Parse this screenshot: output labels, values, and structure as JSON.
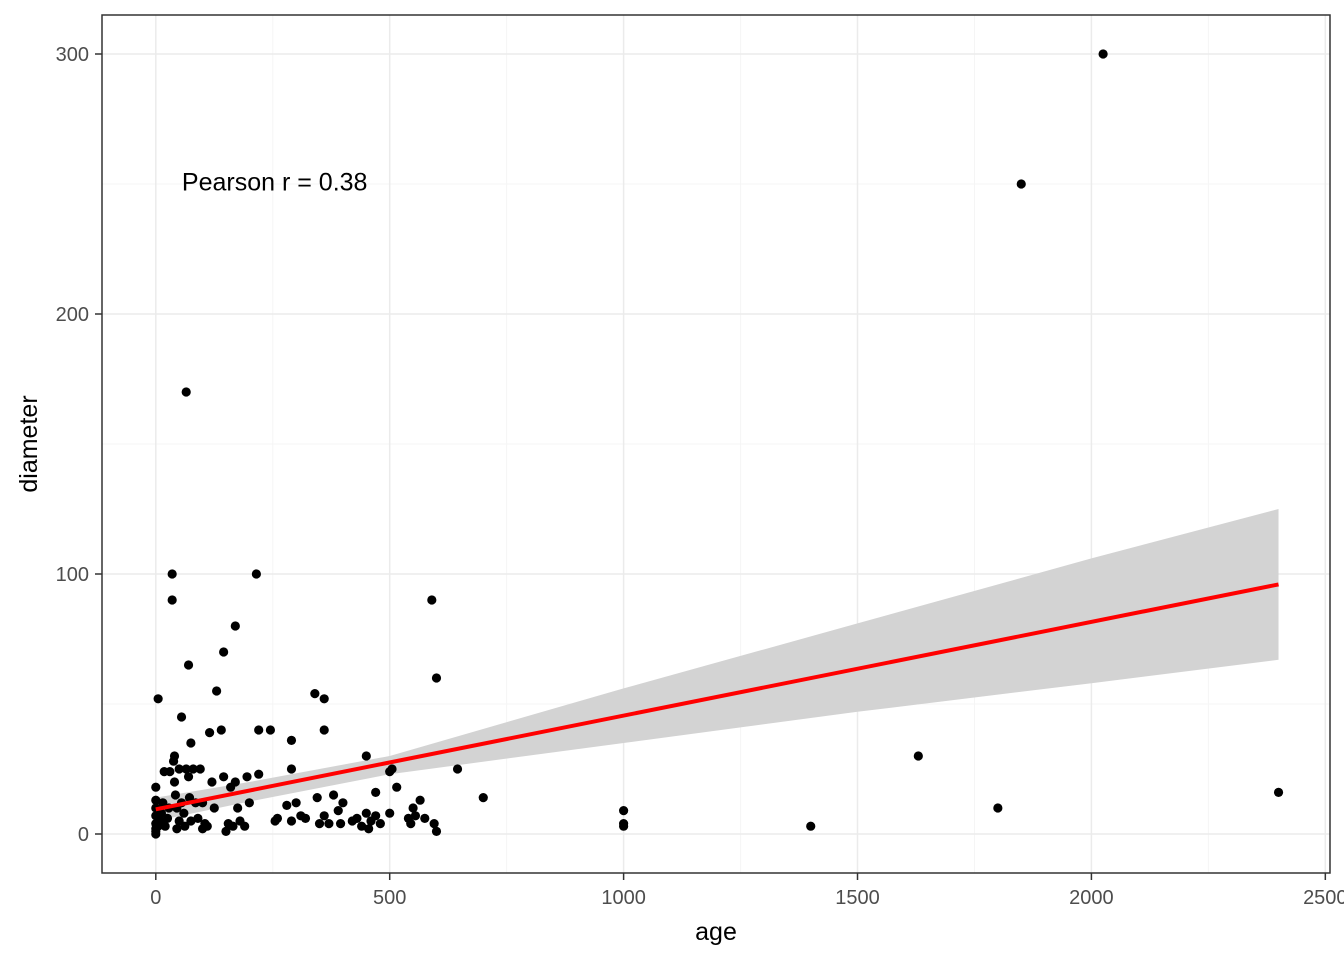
{
  "chart_data": {
    "type": "scatter",
    "xlabel": "age",
    "ylabel": "diameter",
    "xlim": [
      -115,
      2510
    ],
    "ylim": [
      -15,
      315
    ],
    "xticks": [
      0,
      500,
      1000,
      1500,
      2000,
      2500
    ],
    "yticks": [
      0,
      100,
      200,
      300
    ],
    "grid": true,
    "annotation": {
      "text": "Pearson r = 0.38",
      "x": 500,
      "y": 250
    },
    "points": [
      [
        0,
        0
      ],
      [
        0,
        1
      ],
      [
        0,
        2
      ],
      [
        0,
        4
      ],
      [
        0,
        7
      ],
      [
        0,
        10
      ],
      [
        0,
        13
      ],
      [
        0,
        18
      ],
      [
        5,
        52
      ],
      [
        5,
        3
      ],
      [
        10,
        5
      ],
      [
        12,
        8
      ],
      [
        15,
        12
      ],
      [
        18,
        24
      ],
      [
        20,
        3
      ],
      [
        25,
        6
      ],
      [
        28,
        10
      ],
      [
        30,
        24
      ],
      [
        35,
        100
      ],
      [
        35,
        90
      ],
      [
        38,
        28
      ],
      [
        40,
        30
      ],
      [
        40,
        20
      ],
      [
        42,
        15
      ],
      [
        45,
        10
      ],
      [
        45,
        2
      ],
      [
        50,
        5
      ],
      [
        50,
        25
      ],
      [
        55,
        45
      ],
      [
        55,
        12
      ],
      [
        60,
        8
      ],
      [
        62,
        3
      ],
      [
        65,
        170
      ],
      [
        65,
        25
      ],
      [
        70,
        65
      ],
      [
        70,
        22
      ],
      [
        72,
        14
      ],
      [
        75,
        35
      ],
      [
        75,
        5
      ],
      [
        80,
        25
      ],
      [
        85,
        12
      ],
      [
        90,
        6
      ],
      [
        95,
        25
      ],
      [
        100,
        12
      ],
      [
        100,
        2
      ],
      [
        105,
        4
      ],
      [
        110,
        3
      ],
      [
        115,
        39
      ],
      [
        120,
        20
      ],
      [
        125,
        10
      ],
      [
        130,
        55
      ],
      [
        140,
        40
      ],
      [
        145,
        70
      ],
      [
        145,
        22
      ],
      [
        150,
        1
      ],
      [
        155,
        4
      ],
      [
        160,
        18
      ],
      [
        165,
        3
      ],
      [
        170,
        80
      ],
      [
        170,
        20
      ],
      [
        175,
        10
      ],
      [
        180,
        5
      ],
      [
        190,
        3
      ],
      [
        195,
        22
      ],
      [
        200,
        12
      ],
      [
        215,
        100
      ],
      [
        220,
        40
      ],
      [
        220,
        23
      ],
      [
        245,
        40
      ],
      [
        255,
        5
      ],
      [
        260,
        6
      ],
      [
        280,
        11
      ],
      [
        290,
        25
      ],
      [
        290,
        36
      ],
      [
        290,
        5
      ],
      [
        300,
        12
      ],
      [
        310,
        7
      ],
      [
        320,
        6
      ],
      [
        340,
        54
      ],
      [
        345,
        14
      ],
      [
        350,
        4
      ],
      [
        360,
        52
      ],
      [
        360,
        40
      ],
      [
        360,
        7
      ],
      [
        370,
        4
      ],
      [
        380,
        15
      ],
      [
        390,
        9
      ],
      [
        395,
        4
      ],
      [
        400,
        12
      ],
      [
        420,
        5
      ],
      [
        430,
        6
      ],
      [
        440,
        3
      ],
      [
        450,
        8
      ],
      [
        450,
        30
      ],
      [
        455,
        2
      ],
      [
        460,
        5
      ],
      [
        470,
        16
      ],
      [
        470,
        7
      ],
      [
        480,
        4
      ],
      [
        500,
        24
      ],
      [
        500,
        8
      ],
      [
        505,
        25
      ],
      [
        515,
        18
      ],
      [
        540,
        6
      ],
      [
        545,
        4
      ],
      [
        550,
        10
      ],
      [
        555,
        7
      ],
      [
        565,
        13
      ],
      [
        575,
        6
      ],
      [
        590,
        90
      ],
      [
        595,
        4
      ],
      [
        600,
        60
      ],
      [
        600,
        1
      ],
      [
        645,
        25
      ],
      [
        700,
        14
      ],
      [
        1000,
        9
      ],
      [
        1000,
        3
      ],
      [
        1000,
        4
      ],
      [
        1400,
        3
      ],
      [
        1630,
        30
      ],
      [
        1800,
        10
      ],
      [
        1850,
        250
      ],
      [
        2025,
        300
      ],
      [
        2400,
        16
      ]
    ],
    "fit": {
      "type": "linear",
      "color": "#ff0000",
      "x_range": [
        0,
        2400
      ],
      "line": [
        [
          0,
          9.5
        ],
        [
          2400,
          96
        ]
      ],
      "ci_lower": [
        [
          0,
          5
        ],
        [
          200,
          12.5
        ],
        [
          500,
          23
        ],
        [
          1000,
          35
        ],
        [
          1500,
          47
        ],
        [
          2000,
          58
        ],
        [
          2400,
          67
        ]
      ],
      "ci_upper": [
        [
          0,
          14
        ],
        [
          200,
          20
        ],
        [
          500,
          30
        ],
        [
          1000,
          56
        ],
        [
          1500,
          81
        ],
        [
          2000,
          106
        ],
        [
          2400,
          125
        ]
      ]
    },
    "colors": {
      "points": "#000000",
      "fit_line": "#ff0000",
      "ci_band": "#d3d3d3",
      "grid_major": "#ebebeb",
      "grid_minor": "#f5f5f5",
      "panel_border": "#333333"
    }
  }
}
